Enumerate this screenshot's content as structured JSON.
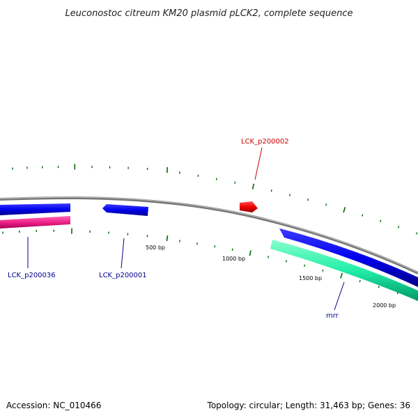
{
  "title": "Leuconostoc citreum KM20 plasmid pLCK2, complete sequence",
  "footer": {
    "accession": "Accession: NC_010466",
    "summary": "Topology: circular; Length: 31,463 bp; Genes: 36"
  },
  "plasmid": {
    "length_bp": 31463,
    "topology": "circular",
    "genes_count": 36
  },
  "scale": {
    "labels": [
      {
        "bp": 500,
        "text": "500 bp"
      },
      {
        "bp": 1000,
        "text": "1000 bp"
      },
      {
        "bp": 1500,
        "text": "1500 bp"
      },
      {
        "bp": 2000,
        "text": "2000 bp"
      }
    ]
  },
  "genes": [
    {
      "id": "LCK_p200036",
      "label": "LCK_p200036",
      "track": "inner-blue"
    },
    {
      "id": "LCK_p200001",
      "label": "LCK_p200001",
      "track": "inner-blue"
    },
    {
      "id": "LCK_p200002",
      "label": "LCK_p200002",
      "track": "outer-red"
    },
    {
      "id": "mrr",
      "label": "mrr",
      "track": "inner-green"
    }
  ],
  "colors": {
    "backbone": "#888888",
    "forward_gene": "#ff0000",
    "reverse_gene": "#0000ee",
    "rna_track": "#ff3399",
    "mrr_track": "#33ffaa",
    "ticks": "#006600",
    "label_blue": "#00008b",
    "label_red": "#cc0000"
  }
}
